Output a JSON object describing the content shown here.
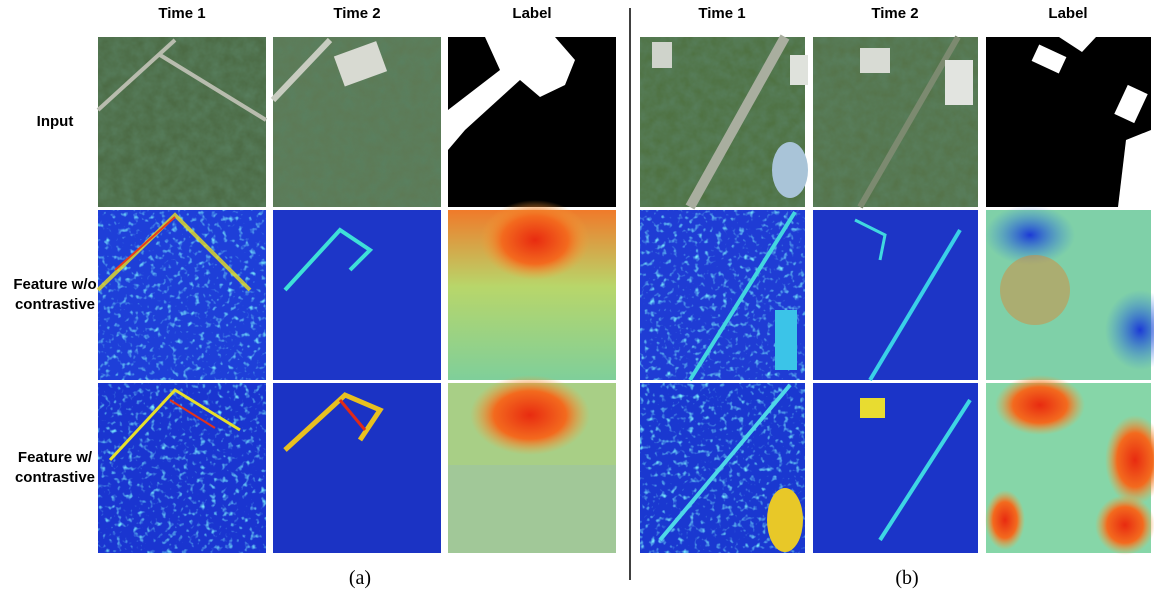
{
  "panels": [
    {
      "columns": [
        "Time 1",
        "Time 2",
        "Label"
      ],
      "caption": "(a)"
    },
    {
      "columns": [
        "Time 1",
        "Time 2",
        "Label"
      ],
      "caption": "(b)"
    }
  ],
  "rows": [
    [
      "Input"
    ],
    [
      "Feature w/o",
      "contrastive"
    ],
    [
      "Feature w/",
      "contrastive"
    ]
  ]
}
